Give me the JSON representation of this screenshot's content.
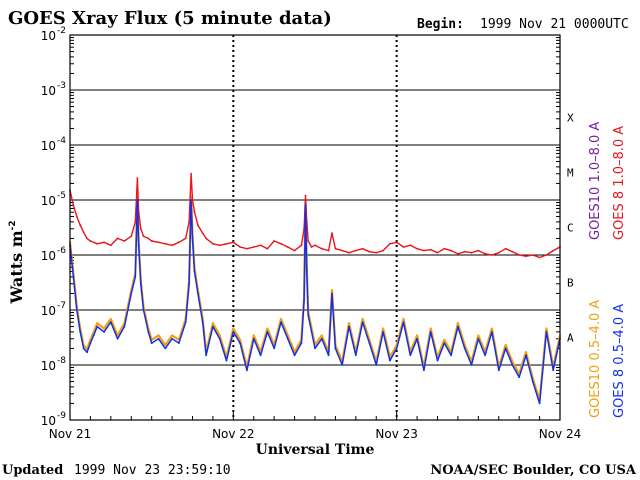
{
  "header": {
    "title": "GOES Xray Flux (5 minute data)",
    "begin_label": "Begin:",
    "begin_value": "1999 Nov 21 0000UTC"
  },
  "footer": {
    "updated_label": "Updated",
    "updated_value": "1999 Nov 23 23:59:10",
    "credit": "NOAA/SEC Boulder, CO USA"
  },
  "flare_classes": [
    "X",
    "M",
    "C",
    "B",
    "A"
  ],
  "colors": {
    "goes10_long": "#7a1ea0",
    "goes8_long": "#e8141e",
    "goes10_short": "#f0a010",
    "goes8_short": "#1030f0",
    "background": "#ffffff",
    "axes": "#000000"
  },
  "chart_data": {
    "type": "line",
    "title": "GOES Xray Flux (5 minute data)",
    "xlabel": "Universal Time",
    "ylabel": "Watts m",
    "ylabel_superscript": "-2",
    "y_scale": "log",
    "ylim": [
      1e-09,
      0.01
    ],
    "xlim": [
      0,
      72
    ],
    "x_unit": "hours since 1999 Nov 21 00:00 UT",
    "x_ticks": [
      {
        "label": "Nov 21",
        "value": 0
      },
      {
        "label": "Nov 22",
        "value": 24
      },
      {
        "label": "Nov 23",
        "value": 48
      },
      {
        "label": "Nov 24",
        "value": 72
      }
    ],
    "y_ticks": [
      {
        "base": "10",
        "exp": "-2",
        "value": 0.01
      },
      {
        "base": "10",
        "exp": "-3",
        "value": 0.001
      },
      {
        "base": "10",
        "exp": "-4",
        "value": 0.0001
      },
      {
        "base": "10",
        "exp": "-5",
        "value": 1e-05
      },
      {
        "base": "10",
        "exp": "-6",
        "value": 1e-06
      },
      {
        "base": "10",
        "exp": "-7",
        "value": 1e-07
      },
      {
        "base": "10",
        "exp": "-8",
        "value": 1e-08
      },
      {
        "base": "10",
        "exp": "-9",
        "value": 1e-09
      }
    ],
    "grid": "horizontal lines at 1e-3..1e-8, dashed verticals at day boundaries",
    "legend": [
      {
        "label": "GOES10 1.0–8.0 A",
        "color": "#7a1ea0"
      },
      {
        "label": "GOES 8 1.0–8.0 A",
        "color": "#e8141e"
      },
      {
        "label": "GOES10 0.5–4.0 A",
        "color": "#f0a010"
      },
      {
        "label": "GOES 8 0.5–4.0 A",
        "color": "#1030f0"
      }
    ],
    "series": [
      {
        "name": "GOES 8 1.0–8.0 A",
        "color": "#e8141e",
        "x": [
          0,
          0.5,
          1,
          1.5,
          2,
          2.5,
          3,
          4,
          5,
          6,
          7,
          8,
          9,
          9.6,
          9.9,
          10.1,
          10.4,
          10.8,
          11.5,
          12,
          13,
          14,
          15,
          16,
          17,
          17.5,
          17.8,
          18,
          18.3,
          18.8,
          19.5,
          20,
          21,
          22,
          23,
          24,
          25,
          26,
          27,
          28,
          29,
          30,
          31,
          32,
          33,
          34,
          34.4,
          34.6,
          34.8,
          35,
          35.5,
          36,
          37,
          38,
          38.5,
          39,
          40,
          41,
          42,
          43,
          44,
          45,
          46,
          47,
          48,
          49,
          50,
          51,
          52,
          53,
          54,
          55,
          56,
          57,
          58,
          59,
          60,
          61,
          62,
          63,
          64,
          65,
          66,
          67,
          68,
          69,
          70,
          71,
          72
        ],
        "y": [
          1.5e-05,
          8e-06,
          5e-06,
          3.5e-06,
          2.6e-06,
          2e-06,
          1.8e-06,
          1.6e-06,
          1.7e-06,
          1.5e-06,
          2e-06,
          1.8e-06,
          2.2e-06,
          4e-06,
          2.5e-05,
          6e-06,
          3e-06,
          2.2e-06,
          2e-06,
          1.8e-06,
          1.7e-06,
          1.6e-06,
          1.5e-06,
          1.7e-06,
          2e-06,
          4e-06,
          3e-05,
          1e-05,
          6e-06,
          3.5e-06,
          2.5e-06,
          2e-06,
          1.6e-06,
          1.5e-06,
          1.6e-06,
          1.7e-06,
          1.4e-06,
          1.3e-06,
          1.4e-06,
          1.5e-06,
          1.3e-06,
          1.8e-06,
          1.6e-06,
          1.4e-06,
          1.2e-06,
          1.5e-06,
          3e-06,
          1.2e-05,
          4e-06,
          1.8e-06,
          1.4e-06,
          1.5e-06,
          1.3e-06,
          1.2e-06,
          2.5e-06,
          1.3e-06,
          1.2e-06,
          1.1e-06,
          1.2e-06,
          1.3e-06,
          1.15e-06,
          1.1e-06,
          1.2e-06,
          1.6e-06,
          1.7e-06,
          1.4e-06,
          1.5e-06,
          1.3e-06,
          1.2e-06,
          1.25e-06,
          1.1e-06,
          1.3e-06,
          1.2e-06,
          1.05e-06,
          1.15e-06,
          1.1e-06,
          1.2e-06,
          1.05e-06,
          1e-06,
          1.1e-06,
          1.3e-06,
          1.15e-06,
          1e-06,
          9.5e-07,
          1e-06,
          9e-07,
          1e-06,
          1.2e-06,
          1.4e-06
        ]
      },
      {
        "name": "GOES 8 0.5–4.0 A",
        "color": "#1030f0",
        "x": [
          0,
          0.5,
          1,
          1.5,
          2,
          2.5,
          3,
          3.5,
          4,
          5,
          6,
          7,
          8,
          9,
          9.6,
          9.9,
          10.1,
          10.4,
          10.8,
          11.5,
          12,
          13,
          14,
          15,
          16,
          17,
          17.5,
          17.8,
          18,
          18.3,
          18.8,
          19.5,
          20,
          21,
          22,
          23,
          24,
          25,
          26,
          27,
          28,
          29,
          30,
          31,
          32,
          33,
          34,
          34.4,
          34.6,
          34.8,
          35,
          35.5,
          36,
          37,
          38,
          38.5,
          39,
          40,
          41,
          42,
          43,
          44,
          45,
          46,
          47,
          48,
          49,
          50,
          51,
          52,
          53,
          54,
          55,
          56,
          57,
          58,
          59,
          60,
          61,
          62,
          63,
          64,
          65,
          66,
          67,
          68,
          69,
          70,
          71,
          72
        ],
        "y": [
          1.5e-06,
          4e-07,
          1e-07,
          4e-08,
          2e-08,
          1.7e-08,
          2.5e-08,
          3.5e-08,
          5e-08,
          4e-08,
          6e-08,
          3e-08,
          5e-08,
          2e-07,
          4e-07,
          1e-05,
          1.5e-06,
          3e-07,
          1e-07,
          4e-08,
          2.5e-08,
          3e-08,
          2e-08,
          3e-08,
          2.5e-08,
          6e-08,
          3e-07,
          1e-05,
          2e-06,
          5e-07,
          2e-07,
          6e-08,
          1.5e-08,
          5e-08,
          3e-08,
          1.2e-08,
          4e-08,
          2.5e-08,
          8e-09,
          3e-08,
          1.5e-08,
          4e-08,
          2e-08,
          6e-08,
          3e-08,
          1.5e-08,
          2.5e-08,
          1.5e-07,
          8e-06,
          5e-07,
          8e-08,
          4e-08,
          2e-08,
          3e-08,
          1.5e-08,
          2e-07,
          2e-08,
          1e-08,
          5e-08,
          1.5e-08,
          6e-08,
          2.5e-08,
          1e-08,
          4e-08,
          1.2e-08,
          2e-08,
          6e-08,
          1.5e-08,
          3e-08,
          8e-09,
          4e-08,
          1.2e-08,
          2.5e-08,
          1.5e-08,
          5e-08,
          2e-08,
          1e-08,
          3e-08,
          1.5e-08,
          4e-08,
          8e-09,
          2e-08,
          1e-08,
          6e-09,
          1.5e-08,
          5e-09,
          2e-09,
          4e-08,
          8e-09,
          3e-08
        ]
      }
    ]
  }
}
